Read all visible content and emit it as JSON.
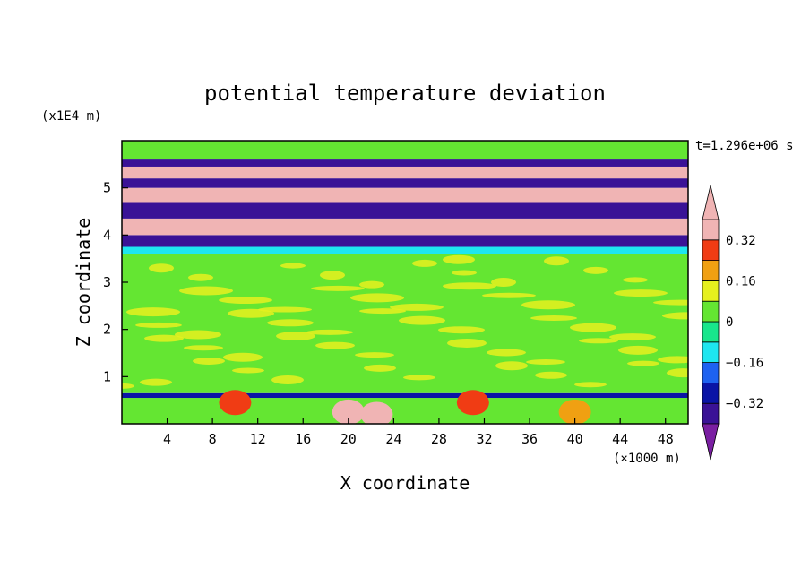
{
  "chart_data": {
    "type": "heatmap",
    "title": "potential temperature deviation",
    "timestamp": "t=1.296e+06 s",
    "xlabel": "X coordinate",
    "ylabel": "Z coordinate",
    "x_unit": "(×1000 m)",
    "y_unit": "(x1E4 m)",
    "xlim": [
      0,
      50
    ],
    "ylim": [
      0,
      6
    ],
    "x_ticks": [
      4,
      8,
      12,
      16,
      20,
      24,
      28,
      32,
      36,
      40,
      44,
      48
    ],
    "y_ticks": [
      1,
      2,
      3,
      4,
      5
    ],
    "colorbar": {
      "levels": [
        -0.4,
        -0.32,
        -0.24,
        -0.16,
        -0.08,
        0,
        0.08,
        0.16,
        0.24,
        0.32,
        0.4
      ],
      "labels": [
        "0.32",
        "0.16",
        "0",
        "−0.16",
        "−0.32"
      ],
      "label_values": [
        0.32,
        0.16,
        0,
        -0.16,
        -0.32
      ],
      "colors": [
        "#7a1fa2",
        "#3a1296",
        "#0a14a6",
        "#1e62f0",
        "#1ee6f0",
        "#18e68c",
        "#64e632",
        "#e6f01e",
        "#f0a012",
        "#f03c14",
        "#f0b4b4"
      ],
      "extend": "both"
    },
    "bands": [
      {
        "z_range": [
          0.0,
          0.55
        ],
        "value": 0.0,
        "note": "surface layer with warm plumes"
      },
      {
        "z_range": [
          0.55,
          0.65
        ],
        "value": -0.32
      },
      {
        "z_range": [
          0.65,
          3.6
        ],
        "value": 0.04
      },
      {
        "z_range": [
          3.6,
          3.75
        ],
        "value": -0.16
      },
      {
        "z_range": [
          3.75,
          4.0
        ],
        "value": -0.4
      },
      {
        "z_range": [
          4.0,
          4.35
        ],
        "value": 0.4
      },
      {
        "z_range": [
          4.35,
          4.7
        ],
        "value": -0.4
      },
      {
        "z_range": [
          4.7,
          5.0
        ],
        "value": 0.4
      },
      {
        "z_range": [
          5.0,
          5.2
        ],
        "value": -0.4
      },
      {
        "z_range": [
          5.2,
          5.45
        ],
        "value": 0.4
      },
      {
        "z_range": [
          5.45,
          5.6
        ],
        "value": -0.4
      },
      {
        "z_range": [
          5.6,
          6.0
        ],
        "value": 0.04
      }
    ],
    "grid": false,
    "legend": "colorbar right"
  }
}
